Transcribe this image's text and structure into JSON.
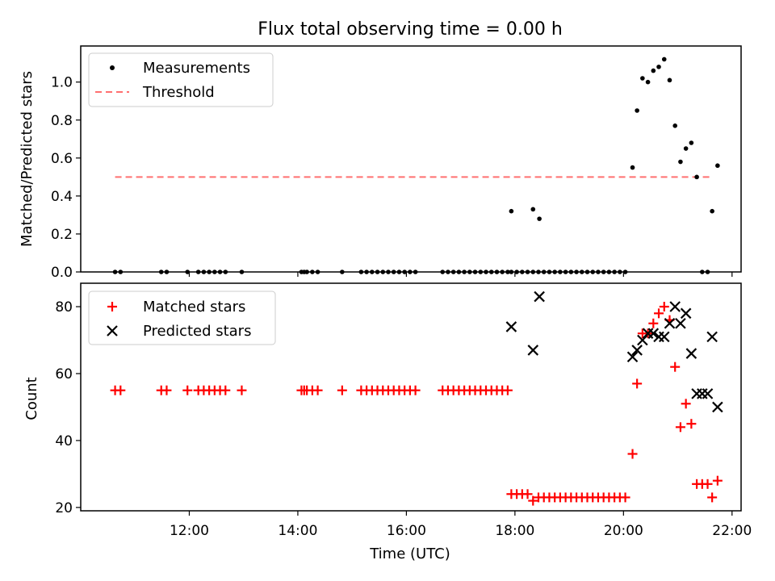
{
  "title": "Flux total observing time = 0.00 h",
  "chart_data": [
    {
      "type": "scatter",
      "panel": "top",
      "ylabel": "Matched/Predicted stars",
      "xlabel": "",
      "ylim": [
        0,
        1.19
      ],
      "yticks": [
        0.0,
        0.2,
        0.4,
        0.6,
        0.8,
        1.0
      ],
      "ytick_labels": [
        "0.0",
        "0.2",
        "0.4",
        "0.6",
        "0.8",
        "1.0"
      ],
      "legend_position": "top-left",
      "grid": false,
      "series": [
        {
          "name": "Measurements",
          "color": "#000000",
          "marker": "dot",
          "x": [
            "10:38",
            "10:44",
            "11:29",
            "11:35",
            "11:58",
            "12:10",
            "12:16",
            "12:22",
            "12:28",
            "12:34",
            "12:40",
            "12:58",
            "14:04",
            "14:07",
            "14:10",
            "14:16",
            "14:22",
            "14:49",
            "15:10",
            "15:16",
            "15:22",
            "15:28",
            "15:34",
            "15:40",
            "15:46",
            "15:52",
            "15:58",
            "16:04",
            "16:10",
            "16:40",
            "16:46",
            "16:52",
            "16:58",
            "17:04",
            "17:10",
            "17:16",
            "17:22",
            "17:28",
            "17:34",
            "17:40",
            "17:46",
            "17:52",
            "17:56",
            "18:02",
            "18:08",
            "18:14",
            "18:20",
            "18:26",
            "18:32",
            "18:38",
            "18:44",
            "18:50",
            "18:56",
            "19:02",
            "19:08",
            "19:14",
            "19:20",
            "19:26",
            "19:32",
            "19:38",
            "19:44",
            "19:50",
            "19:56",
            "20:02",
            "17:56",
            "18:20",
            "18:27",
            "20:10",
            "20:15",
            "20:21",
            "20:27",
            "20:33",
            "20:39",
            "20:45",
            "20:51",
            "20:57",
            "21:03",
            "21:09",
            "21:15",
            "21:21",
            "21:27",
            "21:33",
            "21:38",
            "21:44"
          ],
          "y": [
            0,
            0,
            0,
            0,
            0,
            0,
            0,
            0,
            0,
            0,
            0,
            0,
            0,
            0,
            0,
            0,
            0,
            0,
            0,
            0,
            0,
            0,
            0,
            0,
            0,
            0,
            0,
            0,
            0,
            0,
            0,
            0,
            0,
            0,
            0,
            0,
            0,
            0,
            0,
            0,
            0,
            0,
            0,
            0,
            0,
            0,
            0,
            0,
            0,
            0,
            0,
            0,
            0,
            0,
            0,
            0,
            0,
            0,
            0,
            0,
            0,
            0,
            0,
            0,
            0.32,
            0.33,
            0.28,
            0.55,
            0.85,
            1.02,
            1.0,
            1.06,
            1.08,
            1.12,
            1.01,
            0.77,
            0.58,
            0.65,
            0.68,
            0.5,
            0.0,
            0.0,
            0.32,
            0.56
          ]
        },
        {
          "name": "Threshold",
          "color": "#ff7070",
          "line": "dashed",
          "x": [
            "10:38",
            "21:38"
          ],
          "y": [
            0.5,
            0.5
          ]
        }
      ]
    },
    {
      "type": "scatter",
      "panel": "bottom",
      "ylabel": "Count",
      "xlabel": "Time (UTC)",
      "ylim": [
        19,
        87
      ],
      "yticks": [
        20,
        40,
        60,
        80
      ],
      "ytick_labels": [
        "20",
        "40",
        "60",
        "80"
      ],
      "xlim": [
        "10:00",
        "22:10"
      ],
      "xticks": [
        "12:00",
        "14:00",
        "16:00",
        "18:00",
        "20:00",
        "22:00"
      ],
      "legend_position": "top-left",
      "grid": false,
      "series": [
        {
          "name": "Matched stars",
          "color": "#ff0000",
          "marker": "plus",
          "x": [
            "10:38",
            "10:44",
            "11:29",
            "11:35",
            "11:58",
            "12:10",
            "12:16",
            "12:22",
            "12:28",
            "12:34",
            "12:40",
            "12:58",
            "14:04",
            "14:07",
            "14:10",
            "14:16",
            "14:22",
            "14:49",
            "15:10",
            "15:16",
            "15:22",
            "15:28",
            "15:34",
            "15:40",
            "15:46",
            "15:52",
            "15:58",
            "16:04",
            "16:10",
            "16:40",
            "16:46",
            "16:52",
            "16:58",
            "17:04",
            "17:10",
            "17:16",
            "17:22",
            "17:28",
            "17:34",
            "17:40",
            "17:46",
            "17:52",
            "17:56",
            "18:02",
            "18:08",
            "18:14",
            "18:20",
            "18:26",
            "18:32",
            "18:38",
            "18:44",
            "18:50",
            "18:56",
            "19:02",
            "19:08",
            "19:14",
            "19:20",
            "19:26",
            "19:32",
            "19:38",
            "19:44",
            "19:50",
            "19:56",
            "20:02",
            "20:10",
            "20:15",
            "20:21",
            "20:27",
            "20:33",
            "20:39",
            "20:45",
            "20:51",
            "20:57",
            "21:03",
            "21:09",
            "21:15",
            "21:21",
            "21:27",
            "21:33",
            "21:38",
            "21:44"
          ],
          "y": [
            55,
            55,
            55,
            55,
            55,
            55,
            55,
            55,
            55,
            55,
            55,
            55,
            55,
            55,
            55,
            55,
            55,
            55,
            55,
            55,
            55,
            55,
            55,
            55,
            55,
            55,
            55,
            55,
            55,
            55,
            55,
            55,
            55,
            55,
            55,
            55,
            55,
            55,
            55,
            55,
            55,
            55,
            24,
            24,
            24,
            24,
            22,
            23,
            23,
            23,
            23,
            23,
            23,
            23,
            23,
            23,
            23,
            23,
            23,
            23,
            23,
            23,
            23,
            23,
            36,
            57,
            72,
            72,
            75,
            78,
            80,
            76,
            62,
            44,
            51,
            45,
            27,
            27,
            27,
            23,
            28
          ]
        },
        {
          "name": "Predicted stars",
          "color": "#000000",
          "marker": "cross",
          "x": [
            "17:56",
            "18:20",
            "18:27",
            "20:10",
            "20:15",
            "20:21",
            "20:27",
            "20:33",
            "20:39",
            "20:45",
            "20:51",
            "20:57",
            "21:03",
            "21:09",
            "21:15",
            "21:21",
            "21:27",
            "21:33",
            "21:38",
            "21:44"
          ],
          "y": [
            74,
            67,
            83,
            65,
            67,
            70,
            72,
            72,
            71,
            71,
            75,
            80,
            75,
            78,
            66,
            54,
            54,
            54,
            71,
            50
          ]
        }
      ]
    }
  ]
}
